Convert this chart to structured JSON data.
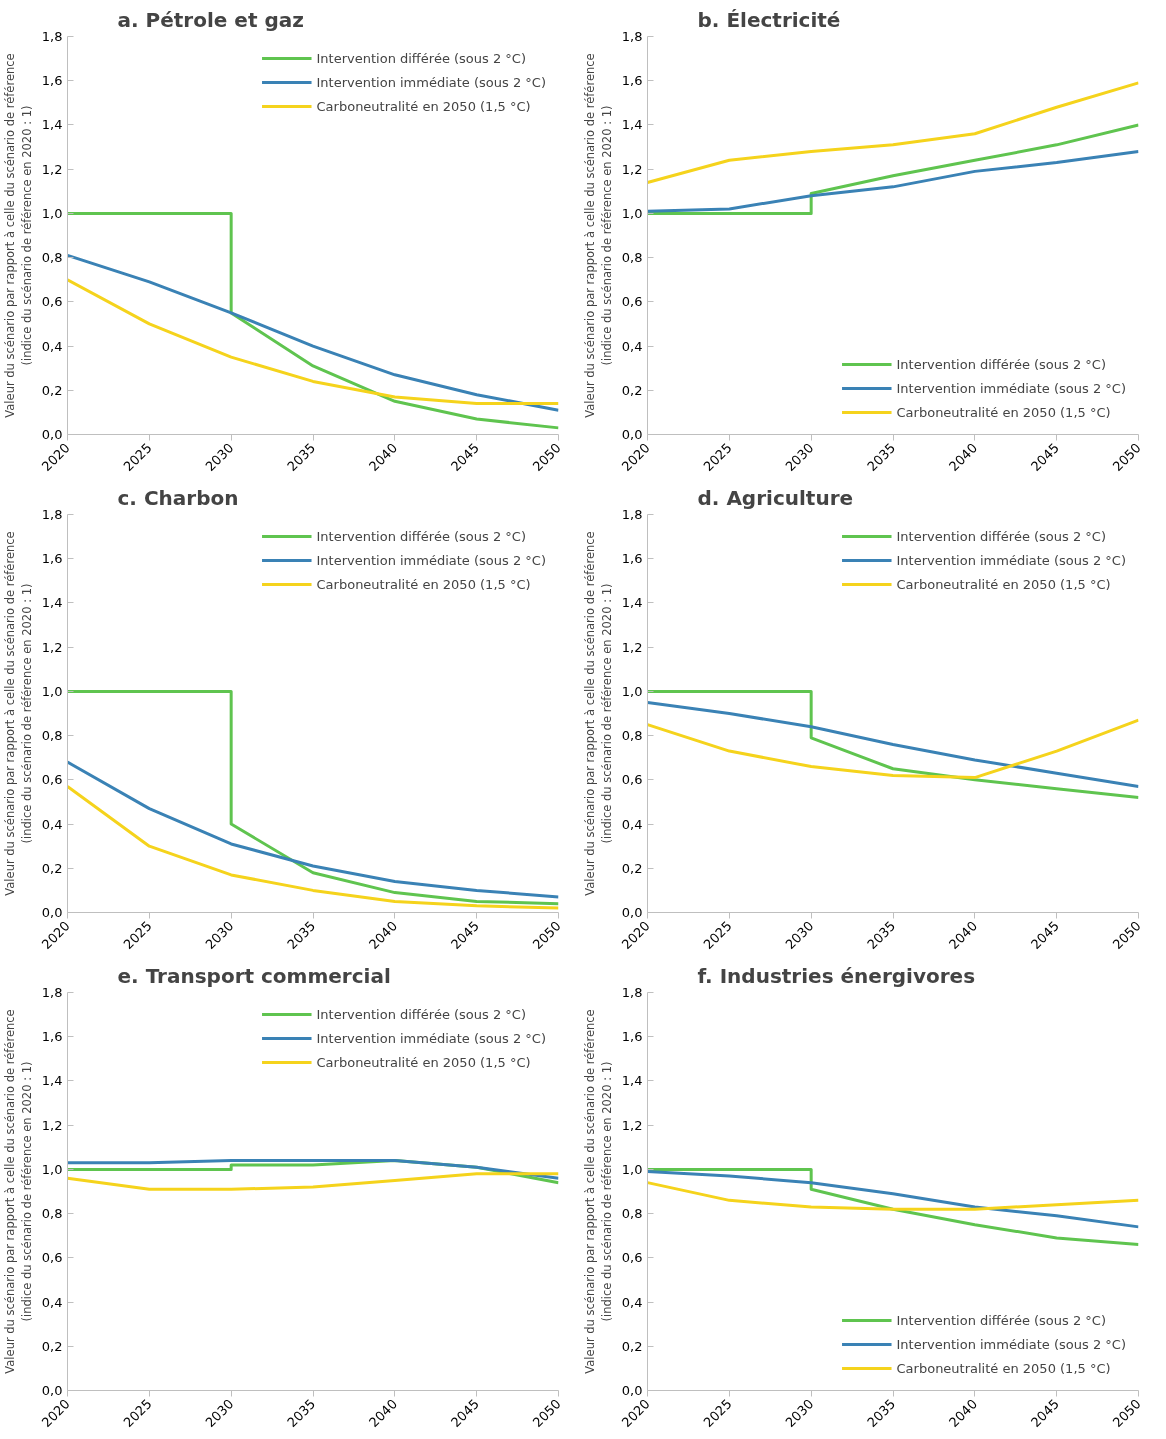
{
  "chart_data": [
    {
      "type": "line",
      "title": "a. Pétrole et gaz",
      "ylabel": "Valeur du scénario par rapport à celle du scénario de référence\n(indice du scénario de référence en 2020 : 1)",
      "x": [
        2020,
        2025,
        2030,
        2035,
        2040,
        2045,
        2050
      ],
      "xlim": [
        2020,
        2050
      ],
      "xticks": [
        2020,
        2025,
        2030,
        2035,
        2040,
        2045,
        2050
      ],
      "ylim": [
        0,
        1.8
      ],
      "yticks": [
        {
          "value": 0,
          "label": "0,0"
        },
        {
          "value": 0.2,
          "label": "0,2"
        },
        {
          "value": 0.4,
          "label": "0,4"
        },
        {
          "value": 0.6,
          "label": "0,6"
        },
        {
          "value": 0.8,
          "label": "0,8"
        },
        {
          "value": 1.0,
          "label": "1,0"
        },
        {
          "value": 1.2,
          "label": "1,2"
        },
        {
          "value": 1.4,
          "label": "1,4"
        },
        {
          "value": 1.6,
          "label": "1,6"
        },
        {
          "value": 1.8,
          "label": "1,8"
        }
      ],
      "legend": "top right",
      "series": [
        {
          "name": "Intervention différée (sous 2 °C)",
          "color": "#5fc44f",
          "x": [
            2020,
            2025,
            2030,
            2030,
            2035,
            2040,
            2045,
            2050
          ],
          "values": [
            1,
            1,
            1,
            0.55,
            0.31,
            0.15,
            0.07,
            0.03
          ]
        },
        {
          "name": "Intervention immédiate (sous 2 °C)",
          "color": "#3a82b5",
          "values": [
            0.81,
            0.69,
            0.55,
            0.4,
            0.27,
            0.18,
            0.11
          ]
        },
        {
          "name": "Carboneutralité en 2050 (1,5 °C)",
          "color": "#f5d31c",
          "values": [
            0.7,
            0.5,
            0.35,
            0.24,
            0.17,
            0.14,
            0.14
          ]
        }
      ]
    },
    {
      "type": "line",
      "title": "b. Électricité",
      "ylabel": "Valeur du scénario par rapport à celle du scénario de référence\n(indice du scénario de référence en 2020 : 1)",
      "x": [
        2020,
        2025,
        2030,
        2035,
        2040,
        2045,
        2050
      ],
      "xlim": [
        2020,
        2050
      ],
      "xticks": [
        2020,
        2025,
        2030,
        2035,
        2040,
        2045,
        2050
      ],
      "ylim": [
        0,
        1.8
      ],
      "yticks": [
        {
          "value": 0,
          "label": "0,0"
        },
        {
          "value": 0.2,
          "label": "0,2"
        },
        {
          "value": 0.4,
          "label": "0,4"
        },
        {
          "value": 0.6,
          "label": "0,6"
        },
        {
          "value": 0.8,
          "label": "0,8"
        },
        {
          "value": 1.0,
          "label": "1,0"
        },
        {
          "value": 1.2,
          "label": "1,2"
        },
        {
          "value": 1.4,
          "label": "1,4"
        },
        {
          "value": 1.6,
          "label": "1,6"
        },
        {
          "value": 1.8,
          "label": "1,8"
        }
      ],
      "legend": "bottom right",
      "series": [
        {
          "name": "Intervention différée (sous 2 °C)",
          "color": "#5fc44f",
          "x": [
            2020,
            2025,
            2030,
            2030,
            2035,
            2040,
            2045,
            2050
          ],
          "values": [
            1,
            1,
            1,
            1.09,
            1.17,
            1.24,
            1.31,
            1.4
          ]
        },
        {
          "name": "Intervention immédiate (sous 2 °C)",
          "color": "#3a82b5",
          "values": [
            1.01,
            1.02,
            1.08,
            1.12,
            1.19,
            1.23,
            1.28
          ]
        },
        {
          "name": "Carboneutralité en 2050 (1,5 °C)",
          "color": "#f5d31c",
          "values": [
            1.14,
            1.24,
            1.28,
            1.31,
            1.36,
            1.48,
            1.59
          ]
        }
      ]
    },
    {
      "type": "line",
      "title": "c. Charbon",
      "ylabel": "Valeur du scénario par rapport à celle du scénario de référence\n(indice du scénario de référence en 2020 : 1)",
      "x": [
        2020,
        2025,
        2030,
        2035,
        2040,
        2045,
        2050
      ],
      "xlim": [
        2020,
        2050
      ],
      "xticks": [
        2020,
        2025,
        2030,
        2035,
        2040,
        2045,
        2050
      ],
      "ylim": [
        0,
        1.8
      ],
      "yticks": [
        {
          "value": 0,
          "label": "0,0"
        },
        {
          "value": 0.2,
          "label": "0,2"
        },
        {
          "value": 0.4,
          "label": "0,4"
        },
        {
          "value": 0.6,
          "label": "0,6"
        },
        {
          "value": 0.8,
          "label": "0,8"
        },
        {
          "value": 1.0,
          "label": "1,0"
        },
        {
          "value": 1.2,
          "label": "1,2"
        },
        {
          "value": 1.4,
          "label": "1,4"
        },
        {
          "value": 1.6,
          "label": "1,6"
        },
        {
          "value": 1.8,
          "label": "1,8"
        }
      ],
      "legend": "top right",
      "series": [
        {
          "name": "Intervention différée (sous 2 °C)",
          "color": "#5fc44f",
          "x": [
            2020,
            2025,
            2030,
            2030,
            2035,
            2040,
            2045,
            2050
          ],
          "values": [
            1,
            1,
            1,
            0.4,
            0.18,
            0.09,
            0.05,
            0.04
          ]
        },
        {
          "name": "Intervention immédiate (sous 2 °C)",
          "color": "#3a82b5",
          "values": [
            0.68,
            0.47,
            0.31,
            0.21,
            0.14,
            0.1,
            0.07
          ]
        },
        {
          "name": "Carboneutralité en 2050 (1,5 °C)",
          "color": "#f5d31c",
          "values": [
            0.57,
            0.3,
            0.17,
            0.1,
            0.05,
            0.03,
            0.02
          ]
        }
      ]
    },
    {
      "type": "line",
      "title": "d. Agriculture",
      "ylabel": "Valeur du scénario par rapport à celle du scénario de référence\n(indice du scénario de référence en 2020 : 1)",
      "x": [
        2020,
        2025,
        2030,
        2035,
        2040,
        2045,
        2050
      ],
      "xlim": [
        2020,
        2050
      ],
      "xticks": [
        2020,
        2025,
        2030,
        2035,
        2040,
        2045,
        2050
      ],
      "ylim": [
        0,
        1.8
      ],
      "yticks": [
        {
          "value": 0,
          "label": "0,0"
        },
        {
          "value": 0.2,
          "label": "0,2"
        },
        {
          "value": 0.4,
          "label": "0,4"
        },
        {
          "value": 0.6,
          "label": "0,6"
        },
        {
          "value": 0.8,
          "label": "0,8"
        },
        {
          "value": 1.0,
          "label": "1,0"
        },
        {
          "value": 1.2,
          "label": "1,2"
        },
        {
          "value": 1.4,
          "label": "1,4"
        },
        {
          "value": 1.6,
          "label": "1,6"
        },
        {
          "value": 1.8,
          "label": "1,8"
        }
      ],
      "legend": "top right",
      "series": [
        {
          "name": "Intervention différée (sous 2 °C)",
          "color": "#5fc44f",
          "x": [
            2020,
            2025,
            2030,
            2030,
            2035,
            2040,
            2045,
            2050
          ],
          "values": [
            1,
            1,
            1,
            0.79,
            0.65,
            0.6,
            0.56,
            0.52
          ]
        },
        {
          "name": "Intervention immédiate (sous 2 °C)",
          "color": "#3a82b5",
          "values": [
            0.95,
            0.9,
            0.84,
            0.76,
            0.69,
            0.63,
            0.57
          ]
        },
        {
          "name": "Carboneutralité en 2050 (1,5 °C)",
          "color": "#f5d31c",
          "values": [
            0.85,
            0.73,
            0.66,
            0.62,
            0.61,
            0.73,
            0.87
          ]
        }
      ]
    },
    {
      "type": "line",
      "title": "e. Transport commercial",
      "ylabel": "Valeur du scénario par rapport à celle du scénario de référence\n(indice du scénario de référence en 2020 : 1)",
      "x": [
        2020,
        2025,
        2030,
        2035,
        2040,
        2045,
        2050
      ],
      "xlim": [
        2020,
        2050
      ],
      "xticks": [
        2020,
        2025,
        2030,
        2035,
        2040,
        2045,
        2050
      ],
      "ylim": [
        0,
        1.8
      ],
      "yticks": [
        {
          "value": 0,
          "label": "0,0"
        },
        {
          "value": 0.2,
          "label": "0,2"
        },
        {
          "value": 0.4,
          "label": "0,4"
        },
        {
          "value": 0.6,
          "label": "0,6"
        },
        {
          "value": 0.8,
          "label": "0,8"
        },
        {
          "value": 1.0,
          "label": "1,0"
        },
        {
          "value": 1.2,
          "label": "1,2"
        },
        {
          "value": 1.4,
          "label": "1,4"
        },
        {
          "value": 1.6,
          "label": "1,6"
        },
        {
          "value": 1.8,
          "label": "1,8"
        }
      ],
      "legend": "top right",
      "series": [
        {
          "name": "Intervention différée (sous 2 °C)",
          "color": "#5fc44f",
          "x": [
            2020,
            2025,
            2030,
            2030,
            2035,
            2040,
            2045,
            2050
          ],
          "values": [
            1,
            1,
            1,
            1.02,
            1.02,
            1.04,
            1.01,
            0.94
          ]
        },
        {
          "name": "Intervention immédiate (sous 2 °C)",
          "color": "#3a82b5",
          "values": [
            1.03,
            1.03,
            1.04,
            1.04,
            1.04,
            1.01,
            0.96
          ]
        },
        {
          "name": "Carboneutralité en 2050 (1,5 °C)",
          "color": "#f5d31c",
          "values": [
            0.96,
            0.91,
            0.91,
            0.92,
            0.95,
            0.98,
            0.98
          ]
        }
      ]
    },
    {
      "type": "line",
      "title": "f. Industries énergivores",
      "ylabel": "Valeur du scénario par rapport à celle du scénario de référence\n(indice du scénario de référence en 2020 : 1)",
      "x": [
        2020,
        2025,
        2030,
        2035,
        2040,
        2045,
        2050
      ],
      "xlim": [
        2020,
        2050
      ],
      "xticks": [
        2020,
        2025,
        2030,
        2035,
        2040,
        2045,
        2050
      ],
      "ylim": [
        0,
        1.8
      ],
      "yticks": [
        {
          "value": 0,
          "label": "0,0"
        },
        {
          "value": 0.2,
          "label": "0,2"
        },
        {
          "value": 0.4,
          "label": "0,4"
        },
        {
          "value": 0.6,
          "label": "0,6"
        },
        {
          "value": 0.8,
          "label": "0,8"
        },
        {
          "value": 1.0,
          "label": "1,0"
        },
        {
          "value": 1.2,
          "label": "1,2"
        },
        {
          "value": 1.4,
          "label": "1,4"
        },
        {
          "value": 1.6,
          "label": "1,6"
        },
        {
          "value": 1.8,
          "label": "1,8"
        }
      ],
      "legend": "bottom right",
      "series": [
        {
          "name": "Intervention différée (sous 2 °C)",
          "color": "#5fc44f",
          "x": [
            2020,
            2025,
            2030,
            2030,
            2035,
            2040,
            2045,
            2050
          ],
          "values": [
            1,
            1,
            1,
            0.91,
            0.82,
            0.75,
            0.69,
            0.66
          ]
        },
        {
          "name": "Intervention immédiate (sous 2 °C)",
          "color": "#3a82b5",
          "values": [
            0.99,
            0.97,
            0.94,
            0.89,
            0.83,
            0.79,
            0.74
          ]
        },
        {
          "name": "Carboneutralité en 2050 (1,5 °C)",
          "color": "#f5d31c",
          "values": [
            0.94,
            0.86,
            0.83,
            0.82,
            0.82,
            0.84,
            0.86
          ]
        }
      ]
    }
  ]
}
